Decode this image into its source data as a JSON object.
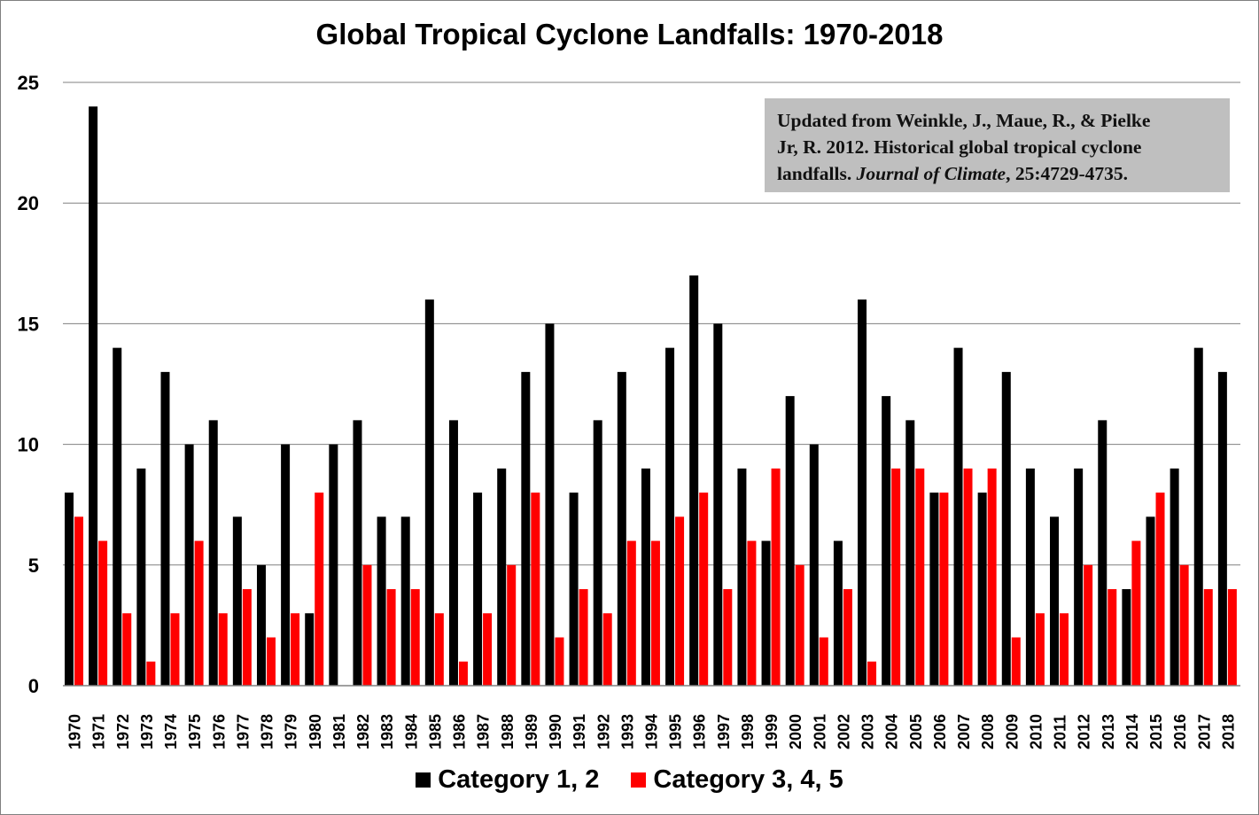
{
  "chart_data": {
    "type": "bar",
    "title": "Global Tropical Cyclone Landfalls: 1970-2018",
    "xlabel": "",
    "ylabel": "",
    "ylim": [
      0,
      25
    ],
    "yticks": [
      0,
      5,
      10,
      15,
      20,
      25
    ],
    "grid": true,
    "legend_position": "bottom",
    "categories": [
      "1970",
      "1971",
      "1972",
      "1973",
      "1974",
      "1975",
      "1976",
      "1977",
      "1978",
      "1979",
      "1980",
      "1981",
      "1982",
      "1983",
      "1984",
      "1985",
      "1986",
      "1987",
      "1988",
      "1989",
      "1990",
      "1991",
      "1992",
      "1993",
      "1994",
      "1995",
      "1996",
      "1997",
      "1998",
      "1999",
      "2000",
      "2001",
      "2002",
      "2003",
      "2004",
      "2005",
      "2006",
      "2007",
      "2008",
      "2009",
      "2010",
      "2011",
      "2012",
      "2013",
      "2014",
      "2015",
      "2016",
      "2017",
      "2018"
    ],
    "series": [
      {
        "name": "Category 1, 2",
        "color": "#000000",
        "values": [
          8,
          24,
          14,
          9,
          13,
          10,
          11,
          7,
          5,
          10,
          3,
          10,
          11,
          7,
          7,
          16,
          11,
          8,
          9,
          13,
          15,
          8,
          11,
          13,
          9,
          14,
          17,
          15,
          9,
          6,
          12,
          10,
          6,
          16,
          12,
          11,
          8,
          14,
          8,
          13,
          9,
          7,
          9,
          11,
          4,
          7,
          9,
          14,
          13
        ]
      },
      {
        "name": "Category 3, 4, 5",
        "color": "#ff0000",
        "values": [
          7,
          6,
          3,
          1,
          3,
          6,
          3,
          4,
          2,
          3,
          8,
          0,
          5,
          4,
          4,
          3,
          1,
          3,
          5,
          8,
          2,
          4,
          3,
          6,
          6,
          7,
          8,
          4,
          6,
          9,
          5,
          2,
          4,
          1,
          9,
          9,
          8,
          9,
          9,
          2,
          3,
          3,
          5,
          4,
          6,
          8,
          5,
          4,
          4
        ]
      }
    ]
  },
  "annotation": {
    "line1": "Updated from Weinkle, J., Maue, R., & Pielke",
    "line2": "Jr, R. 2012. Historical global tropical cyclone",
    "line3_pre": "landfalls. ",
    "line3_italic": "Journal of Climate",
    "line3_post": ", 25:4729-4735."
  }
}
